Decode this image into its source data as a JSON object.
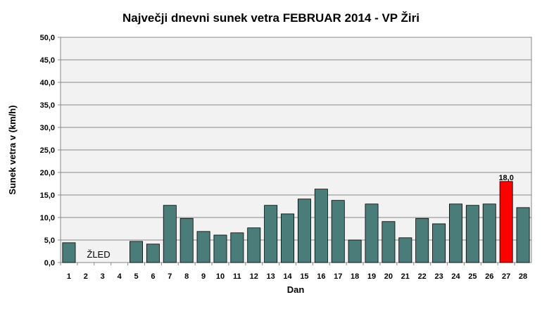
{
  "chart_data": {
    "type": "bar",
    "title": "Največji dnevni sunek vetra FEBRUAR 2014 - VP Žiri",
    "xlabel": "Dan",
    "ylabel": "Sunek vetra v (km/h)",
    "ylim": [
      0,
      50
    ],
    "ytick_step": 5,
    "ytick_labels": [
      "0,0",
      "5,0",
      "10,0",
      "15,0",
      "20,0",
      "25,0",
      "30,0",
      "35,0",
      "40,0",
      "45,0",
      "50,0"
    ],
    "grid": true,
    "categories": [
      "1",
      "2",
      "3",
      "4",
      "5",
      "6",
      "7",
      "8",
      "9",
      "10",
      "11",
      "12",
      "13",
      "14",
      "15",
      "16",
      "17",
      "18",
      "19",
      "20",
      "21",
      "22",
      "23",
      "24",
      "25",
      "26",
      "27",
      "28"
    ],
    "values": [
      4.4,
      null,
      null,
      null,
      4.7,
      4.1,
      12.7,
      9.8,
      6.9,
      6.1,
      6.6,
      7.7,
      12.7,
      10.8,
      14.1,
      16.3,
      13.8,
      5.0,
      13.0,
      9.1,
      5.5,
      9.8,
      8.6,
      13.0,
      12.7,
      13.0,
      18.0,
      12.2
    ],
    "highlight_index": 26,
    "highlight_label": "18,0",
    "annotation": "ŽLED",
    "colors": {
      "bar": "#4a7c7a",
      "highlight": "#ff0000",
      "plot_bg": "#f2f2f2",
      "grid": "#888888"
    }
  }
}
